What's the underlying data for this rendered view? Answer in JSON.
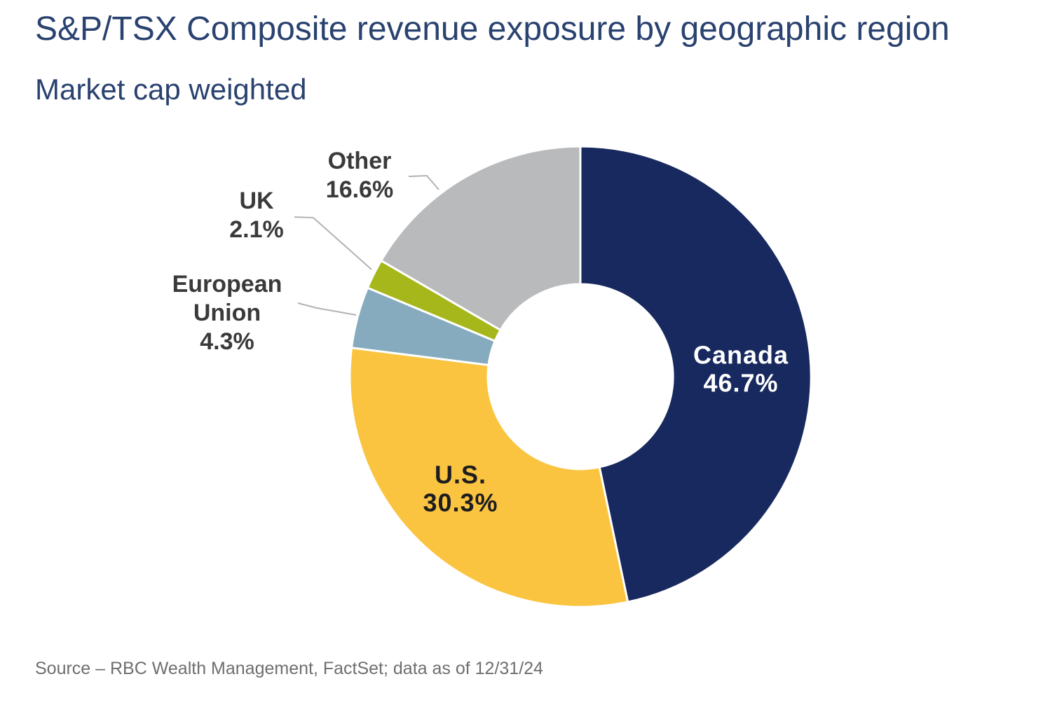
{
  "chart_data": {
    "type": "pie",
    "variant": "donut",
    "title": "S&P/TSX Composite revenue exposure by geographic region",
    "subtitle": "Market cap weighted",
    "unit": "percent",
    "start_angle_deg": 0,
    "direction": "clockwise",
    "inner_radius_ratio": 0.4,
    "legend": "none",
    "total": 100.0,
    "segments": [
      {
        "label": "Canada",
        "value": 46.7,
        "display": "46.7%",
        "color": "#17295E",
        "label_placement": "inside",
        "label_color": "#FFFFFF"
      },
      {
        "label": "U.S.",
        "value": 30.3,
        "display": "30.3%",
        "color": "#FAC440",
        "label_placement": "inside",
        "label_color": "#1D1D1F"
      },
      {
        "label": "European Union",
        "value": 4.3,
        "display": "4.3%",
        "color": "#87ABBE",
        "label_placement": "outside"
      },
      {
        "label": "UK",
        "value": 2.1,
        "display": "2.1%",
        "color": "#A5B71B",
        "label_placement": "outside"
      },
      {
        "label": "Other",
        "value": 16.6,
        "display": "16.6%",
        "color": "#B9BABC",
        "label_placement": "outside"
      }
    ]
  },
  "footer": {
    "source": "Source – RBC Wealth Management, FactSet; data as of 12/31/24"
  },
  "colors": {
    "title_text": "#2A4270",
    "callout_text": "#3A3A3A",
    "leader_line": "#B3B3B3",
    "source_text": "#6E6E6E",
    "background": "#FFFFFF"
  }
}
